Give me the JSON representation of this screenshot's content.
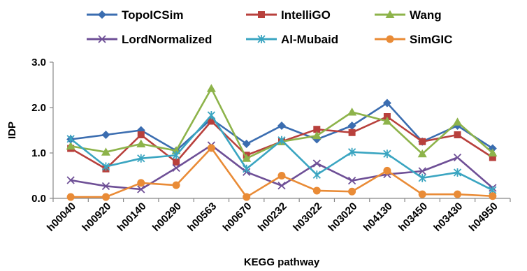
{
  "chart_data": {
    "type": "line",
    "title": "",
    "xlabel": "KEGG pathway",
    "ylabel": "IDP",
    "ylim": [
      0,
      3
    ],
    "yticks": [
      "0.0",
      "1.0",
      "2.0",
      "3.0"
    ],
    "grid": false,
    "legend_position": "top",
    "categories": [
      "h00040",
      "h00920",
      "h00140",
      "h00290",
      "h00563",
      "h00670",
      "h00232",
      "h03022",
      "h03020",
      "h04130",
      "h03450",
      "h03430",
      "h04950"
    ],
    "series": [
      {
        "name": "TopoICSim",
        "color": "#3B6DB0",
        "marker": "diamond",
        "values": [
          1.3,
          1.4,
          1.5,
          1.05,
          1.75,
          1.2,
          1.6,
          1.3,
          1.6,
          2.1,
          1.25,
          1.6,
          1.1
        ]
      },
      {
        "name": "IntelliGO",
        "color": "#B8403C",
        "marker": "square",
        "values": [
          1.1,
          0.65,
          1.4,
          0.8,
          1.7,
          0.95,
          1.25,
          1.52,
          1.45,
          1.8,
          1.25,
          1.4,
          0.9
        ]
      },
      {
        "name": "Wang",
        "color": "#8DB34A",
        "marker": "triangle",
        "values": [
          1.15,
          1.02,
          1.2,
          1.05,
          2.42,
          0.88,
          1.25,
          1.38,
          1.9,
          1.7,
          0.98,
          1.68,
          1.0
        ]
      },
      {
        "name": "LordNormalized",
        "color": "#6E4F96",
        "marker": "x",
        "values": [
          0.4,
          0.27,
          0.2,
          0.67,
          1.17,
          0.58,
          0.28,
          0.77,
          0.39,
          0.53,
          0.6,
          0.9,
          0.23
        ]
      },
      {
        "name": "Al-Mubaid",
        "color": "#3AA5C1",
        "marker": "asterisk",
        "values": [
          1.31,
          0.7,
          0.88,
          0.95,
          1.83,
          0.65,
          1.28,
          0.52,
          1.02,
          0.98,
          0.45,
          0.57,
          0.18
        ]
      },
      {
        "name": "SimGIC",
        "color": "#E98B36",
        "marker": "circle",
        "values": [
          0.03,
          0.03,
          0.34,
          0.29,
          1.11,
          0.03,
          0.5,
          0.17,
          0.15,
          0.61,
          0.09,
          0.09,
          0.05
        ]
      }
    ]
  }
}
